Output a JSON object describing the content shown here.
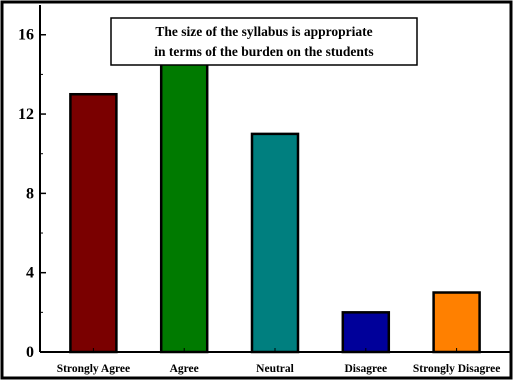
{
  "chart_data": {
    "type": "bar",
    "title_lines": [
      "The size of the syllabus is appropriate",
      "in terms of the burden on the students"
    ],
    "categories": [
      "Strongly Agree",
      "Agree",
      "Neutral",
      "Disagree",
      "Strongly Disagree"
    ],
    "values": [
      13,
      15,
      11,
      2,
      3
    ],
    "colors": [
      "#7a0000",
      "#007a00",
      "#007f7f",
      "#00009a",
      "#ff8000"
    ],
    "ylim": [
      0,
      17.5
    ],
    "yticks": [
      0,
      4,
      8,
      12,
      16
    ],
    "ytick_labels": [
      "0",
      "4",
      "8",
      "12",
      "16"
    ],
    "xlabel": "",
    "ylabel": "",
    "grid": false,
    "legend": "none"
  }
}
